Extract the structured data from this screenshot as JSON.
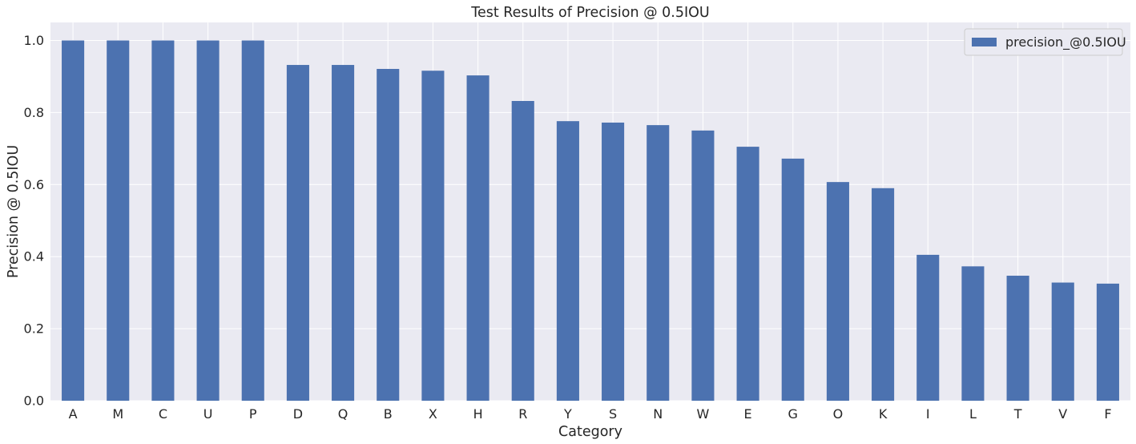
{
  "chart_data": {
    "type": "bar",
    "title": "Test Results of Precision @ 0.5IOU",
    "xlabel": "Category",
    "ylabel": "Precision @ 0.5IOU",
    "categories": [
      "A",
      "M",
      "C",
      "U",
      "P",
      "D",
      "Q",
      "B",
      "X",
      "H",
      "R",
      "Y",
      "S",
      "N",
      "W",
      "E",
      "G",
      "O",
      "K",
      "I",
      "L",
      "T",
      "V",
      "F"
    ],
    "series": [
      {
        "name": "precision_@0.5IOU",
        "values": [
          1.0,
          1.0,
          1.0,
          1.0,
          1.0,
          0.932,
          0.932,
          0.921,
          0.916,
          0.903,
          0.832,
          0.776,
          0.772,
          0.765,
          0.75,
          0.705,
          0.672,
          0.607,
          0.59,
          0.405,
          0.373,
          0.347,
          0.328,
          0.325
        ],
        "color": "#4c72b0"
      }
    ],
    "ylim": [
      0,
      1.05
    ],
    "yticks": [
      0.0,
      0.2,
      0.4,
      0.6,
      0.8,
      1.0
    ],
    "ytick_labels": [
      "0.0",
      "0.2",
      "0.4",
      "0.6",
      "0.8",
      "1.0"
    ],
    "grid": true,
    "legend_position": "top-right",
    "background_color": "#eaeaf2",
    "grid_color": "#ffffff"
  }
}
